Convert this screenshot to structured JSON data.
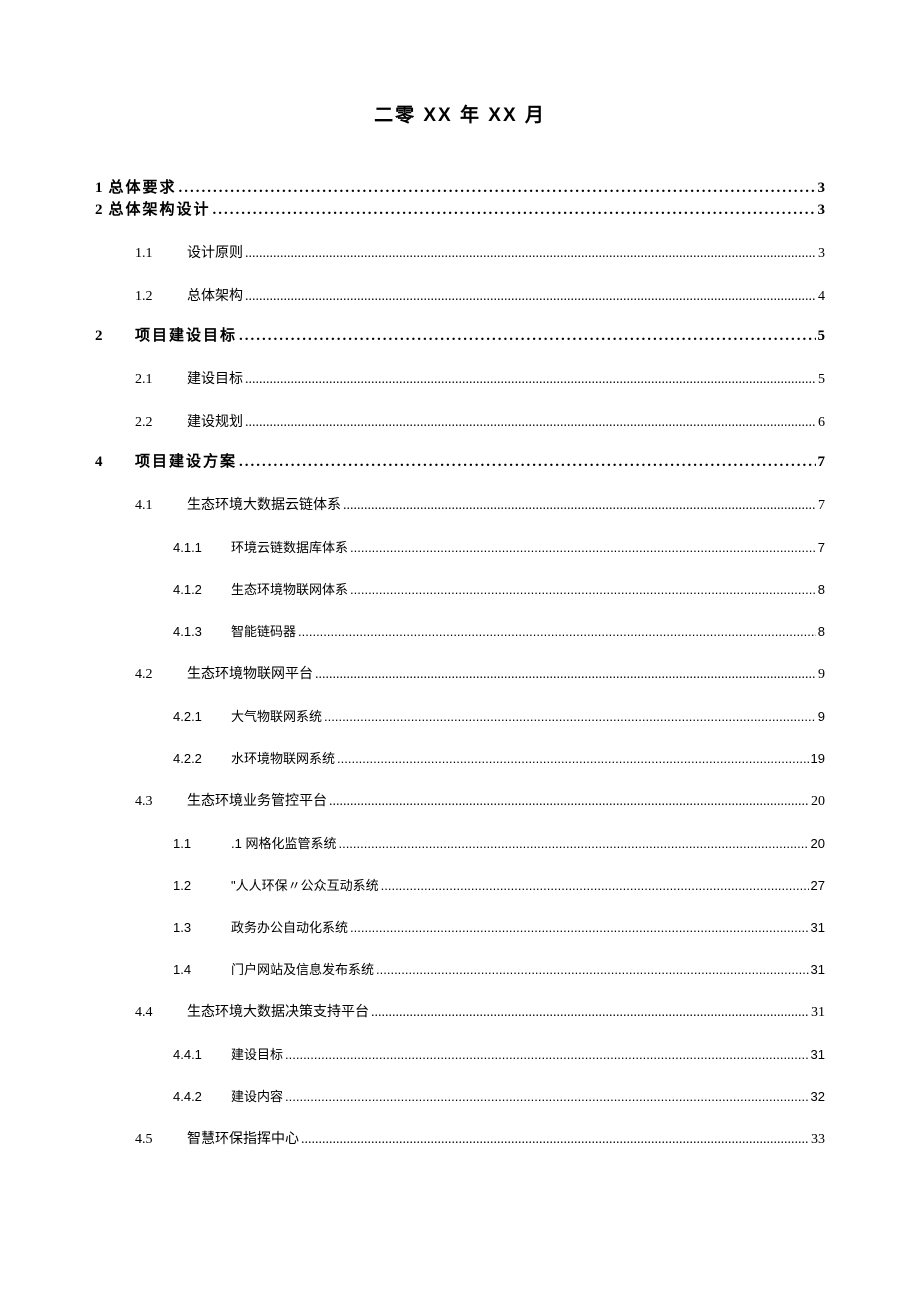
{
  "title": "二零 XX 年 XX 月",
  "toc": [
    {
      "num": "1",
      "title": "总体要求",
      "page": "3",
      "level": "bold",
      "leader": "bold"
    },
    {
      "num": "2",
      "title": "总体架构设计",
      "page": "3",
      "level": "bold",
      "leader": "bold"
    },
    {
      "num": "1.1",
      "title": "设计原则",
      "page": "3",
      "level": "l1",
      "leader": "dots"
    },
    {
      "num": "1.2",
      "title": "总体架构",
      "page": "4",
      "level": "l1",
      "leader": "dots"
    },
    {
      "num": "2",
      "title": "项目建设目标",
      "page": "5",
      "level": "sec",
      "leader": "bold"
    },
    {
      "num": "2.1",
      "title": "建设目标",
      "page": "5",
      "level": "l1",
      "leader": "dots"
    },
    {
      "num": "2.2",
      "title": "建设规划",
      "page": "6",
      "level": "l1",
      "leader": "dots"
    },
    {
      "num": "4",
      "title": "项目建设方案",
      "page": "7",
      "level": "sec",
      "leader": "bold"
    },
    {
      "num": "4.1",
      "title": "生态环境大数据云链体系",
      "page": "7",
      "level": "l1",
      "leader": "dots"
    },
    {
      "num": "4.1.1",
      "title": "环境云链数据库体系",
      "page": "7",
      "level": "l2",
      "leader": "dots"
    },
    {
      "num": "4.1.2",
      "title": "生态环境物联网体系",
      "page": "8",
      "level": "l2",
      "leader": "dots"
    },
    {
      "num": "4.1.3",
      "title": "智能链码器",
      "page": "8",
      "level": "l2",
      "leader": "dots"
    },
    {
      "num": "4.2",
      "title": "生态环境物联网平台",
      "page": "9",
      "level": "l1",
      "leader": "dots"
    },
    {
      "num": "4.2.1",
      "title": "大气物联网系统",
      "page": "9",
      "level": "l2",
      "leader": "dots"
    },
    {
      "num": "4.2.2",
      "title": "水环境物联网系统",
      "page": "19",
      "level": "l2",
      "leader": "dots"
    },
    {
      "num": "4.3",
      "title": "生态环境业务管控平台",
      "page": "20",
      "level": "l1",
      "leader": "dots"
    },
    {
      "num": "1.1",
      "title": ".1 网格化监管系统",
      "page": "20",
      "level": "l2",
      "leader": "dots"
    },
    {
      "num": "1.2",
      "title": "\"人人环保〃公众互动系统",
      "page": "27",
      "level": "l2",
      "leader": "dots"
    },
    {
      "num": "1.3",
      "title": "政务办公自动化系统",
      "page": "31",
      "level": "l2",
      "leader": "dots"
    },
    {
      "num": "1.4",
      "title": "门户网站及信息发布系统",
      "page": "31",
      "level": "l2",
      "leader": "dots"
    },
    {
      "num": "4.4",
      "title": "生态环境大数据决策支持平台",
      "page": "31",
      "level": "l1",
      "leader": "dots"
    },
    {
      "num": "4.4.1",
      "title": "建设目标",
      "page": "31",
      "level": "l2",
      "leader": "dots"
    },
    {
      "num": "4.4.2",
      "title": "建设内容",
      "page": "32",
      "level": "l2",
      "leader": "dots"
    },
    {
      "num": "4.5",
      "title": "智慧环保指挥中心",
      "page": "33",
      "level": "l1",
      "leader": "dots"
    }
  ],
  "styles": {
    "page_bg": "#ffffff",
    "text_color": "#000000",
    "title_fontsize": 19,
    "bold_fontsize": 15,
    "l1_fontsize": 14,
    "l2_fontsize": 13
  }
}
